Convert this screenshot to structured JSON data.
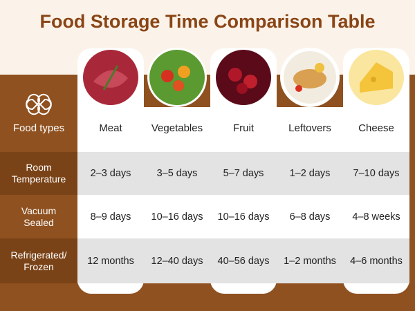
{
  "title": "Food Storage Time Comparison Table",
  "header": {
    "label": "Food types",
    "columns": [
      "Meat",
      "Vegetables",
      "Fruit",
      "Leftovers",
      "Cheese"
    ]
  },
  "rows": [
    {
      "label": "Room Temperature",
      "values": [
        "2–3 days",
        "3–5 days",
        "5–7 days",
        "1–2 days",
        "7–10 days"
      ]
    },
    {
      "label": "Vacuum Sealed",
      "values": [
        "8–9 days",
        "10–16 days",
        "10–16 days",
        "6–8 days",
        "4–8 weeks"
      ]
    },
    {
      "label": "Refrigerated/ Frozen",
      "values": [
        "12 months",
        "12–40 days",
        "40–56 days",
        "1–2 months",
        "4–6 months"
      ]
    }
  ]
}
